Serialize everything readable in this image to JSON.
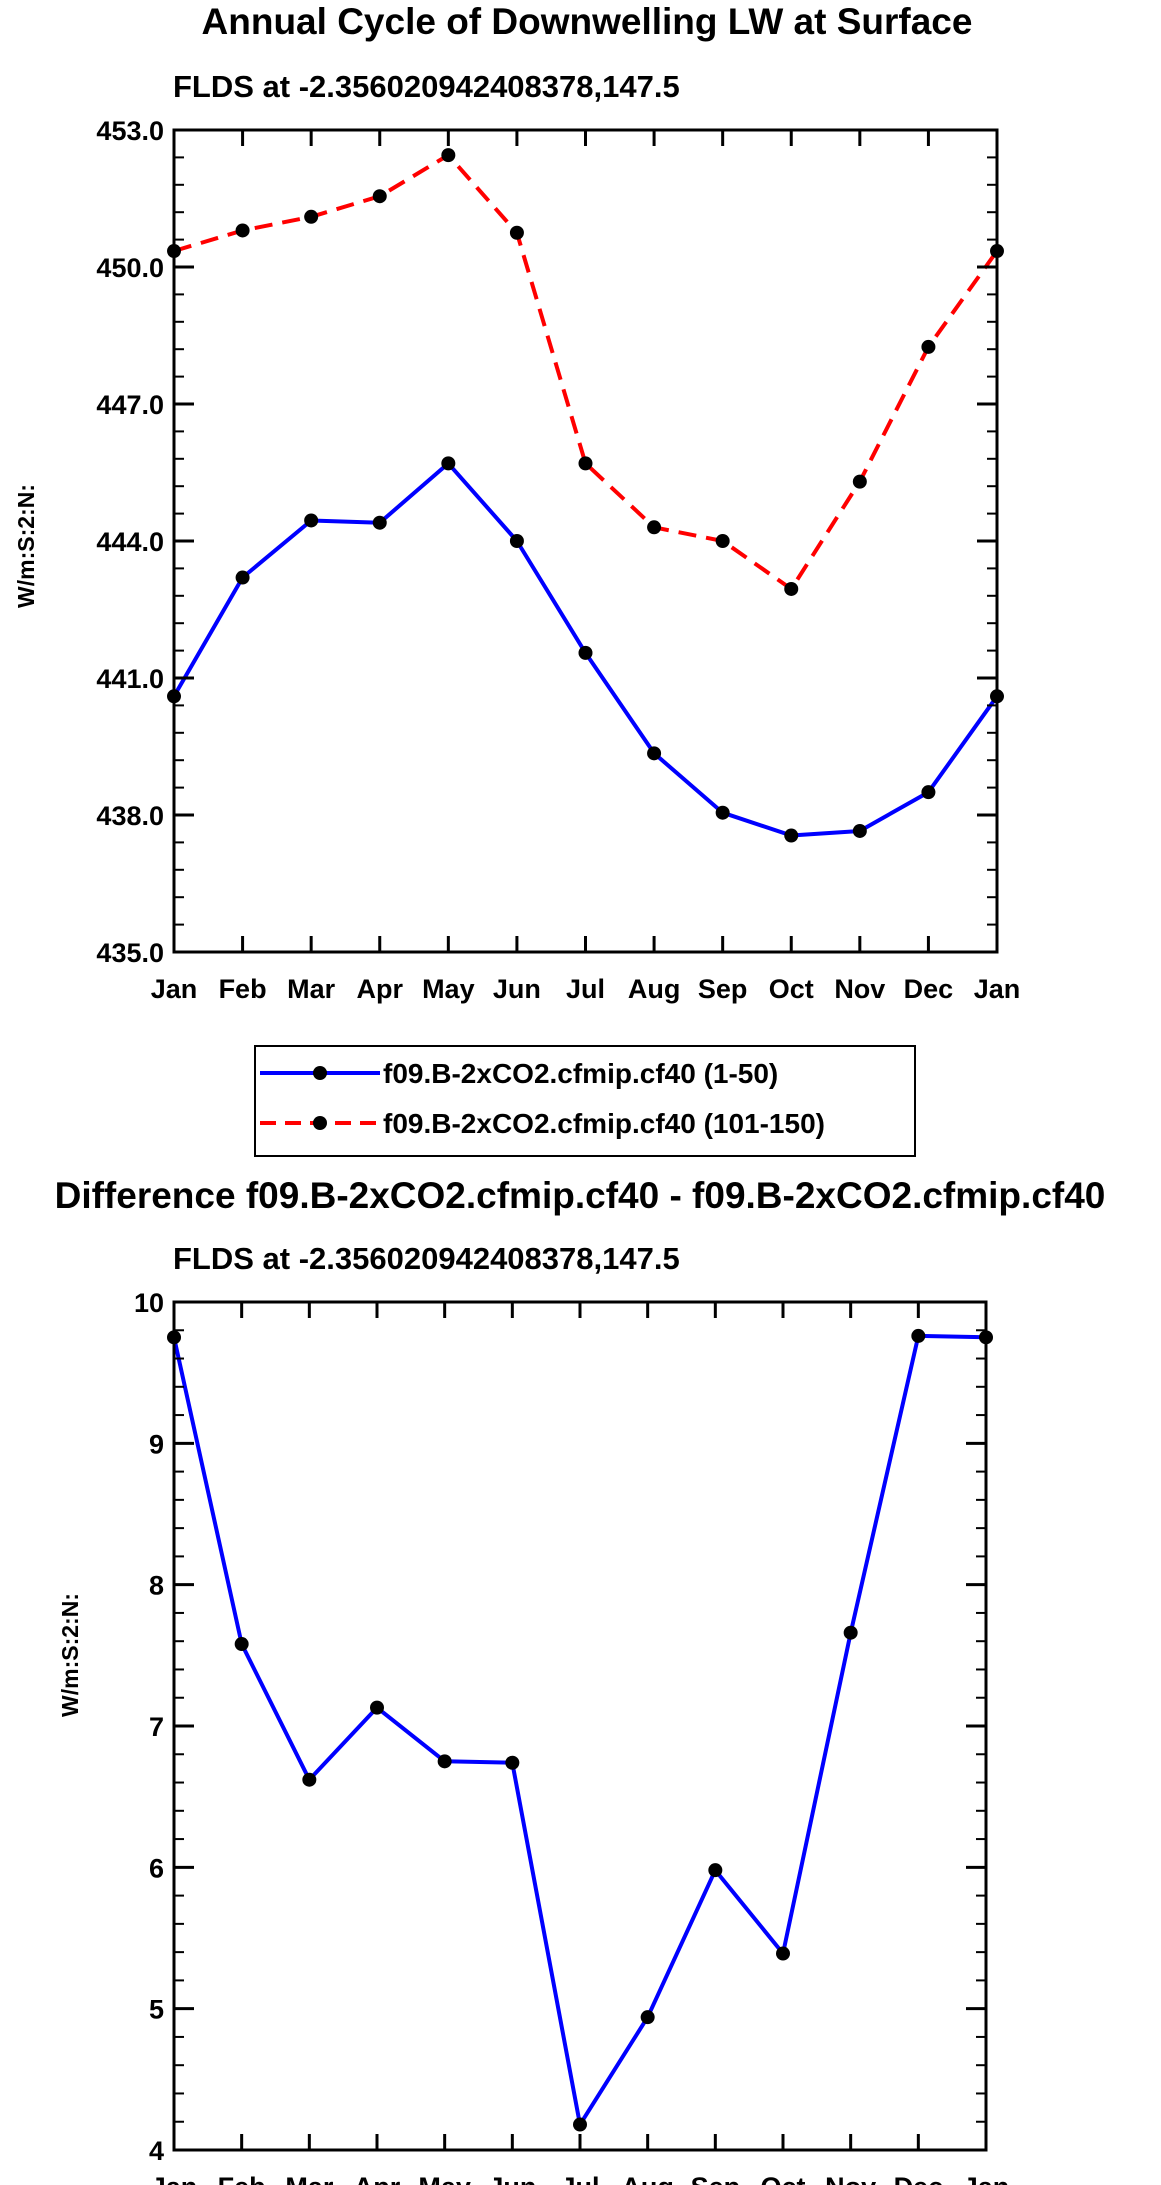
{
  "chart_data": [
    {
      "type": "line",
      "title": "Annual Cycle of Downwelling LW at Surface",
      "subtitle": "FLDS at -2.356020942408378,147.5",
      "xlabel": "",
      "ylabel": "W/m:S:2:N:",
      "categories": [
        "Jan",
        "Feb",
        "Mar",
        "Apr",
        "May",
        "Jun",
        "Jul",
        "Aug",
        "Sep",
        "Oct",
        "Nov",
        "Dec",
        "Jan"
      ],
      "ylim": [
        435.0,
        453.0
      ],
      "yticks": [
        435.0,
        438.0,
        441.0,
        444.0,
        447.0,
        450.0,
        453.0
      ],
      "ytick_labels": [
        "435.0",
        "438.0",
        "441.0",
        "444.0",
        "447.0",
        "450.0",
        "453.0"
      ],
      "legend_position": "bottom",
      "series": [
        {
          "name": "f09.B-2xCO2.cfmip.cf40 (1-50)",
          "color": "#0000ff",
          "dash": "solid",
          "values": [
            440.6,
            443.2,
            444.45,
            444.4,
            445.7,
            444.0,
            441.55,
            439.35,
            438.05,
            437.55,
            437.65,
            438.5,
            440.6
          ]
        },
        {
          "name": "f09.B-2xCO2.cfmip.cf40 (101-150)",
          "color": "#ff0000",
          "dash": "dashed",
          "values": [
            450.35,
            450.8,
            451.1,
            451.55,
            452.45,
            450.75,
            445.7,
            444.3,
            444.0,
            442.95,
            445.3,
            448.25,
            450.35
          ]
        }
      ]
    },
    {
      "type": "line",
      "title": "Difference f09.B-2xCO2.cfmip.cf40 - f09.B-2xCO2.cfmip.cf40",
      "subtitle": "FLDS at -2.356020942408378,147.5",
      "xlabel": "",
      "ylabel": "W/m:S:2:N:",
      "categories": [
        "Jan",
        "Feb",
        "Mar",
        "Apr",
        "May",
        "Jun",
        "Jul",
        "Aug",
        "Sep",
        "Oct",
        "Nov",
        "Dec",
        "Jan"
      ],
      "ylim": [
        4,
        10
      ],
      "yticks": [
        4,
        5,
        6,
        7,
        8,
        9,
        10
      ],
      "ytick_labels": [
        "4",
        "5",
        "6",
        "7",
        "8",
        "9",
        "10"
      ],
      "series": [
        {
          "name": "Difference",
          "color": "#0000ff",
          "dash": "solid",
          "values": [
            9.75,
            7.58,
            6.62,
            7.13,
            6.75,
            6.74,
            4.18,
            4.94,
            5.98,
            5.39,
            7.66,
            9.76,
            9.75
          ]
        }
      ]
    }
  ]
}
